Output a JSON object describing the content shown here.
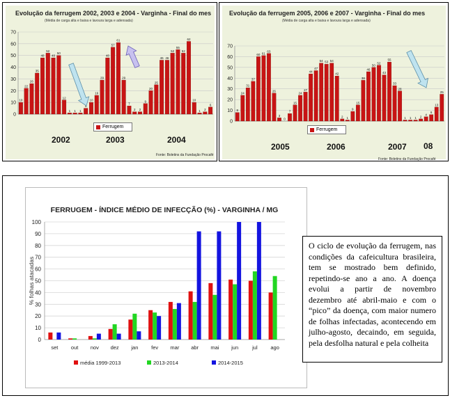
{
  "chart_data": [
    {
      "type": "bar",
      "title": "Evolução da ferrugem 2002, 2003 e 2004   -  Varginha   -   Final do mes",
      "subtitle": "(Média de carga alta e baixa e lavoura larga e adensada)",
      "legend": [
        "Ferrugem"
      ],
      "years": [
        "2002",
        "2003",
        "2004"
      ],
      "source": "Fonte: Boletins da Fundação Procafé",
      "ylim": [
        0,
        70
      ],
      "yticks": [
        0,
        10,
        20,
        30,
        40,
        50,
        60,
        70
      ],
      "values": [
        10,
        22,
        26,
        35,
        48,
        52,
        48,
        50,
        12,
        1,
        1,
        1,
        5,
        10,
        16,
        29,
        48,
        57,
        61,
        29,
        7,
        2,
        2,
        9,
        20,
        25,
        46,
        46,
        52,
        55,
        52,
        62,
        10,
        1,
        2,
        6
      ],
      "series_color": "#c81414",
      "annotations": [
        "down-arrow-blue",
        "up-arrow-purple"
      ]
    },
    {
      "type": "bar",
      "title": "Evolução da ferrugem 2005, 2006 e 2007   -  Varginha   -   Final do mes",
      "subtitle": "(Média de carga alta e baixa e lavoura larga e adensada)",
      "legend": [
        "Ferrugem"
      ],
      "years": [
        "2005",
        "2006",
        "2007",
        "08"
      ],
      "source": "Fonte: Boletins da Fundação Procafé",
      "ylim": [
        0,
        70
      ],
      "yticks": [
        0,
        10,
        20,
        30,
        40,
        50,
        60,
        70
      ],
      "values": [
        8,
        24,
        31,
        37,
        60,
        61,
        63,
        26,
        3,
        0,
        7,
        15,
        24,
        27,
        44,
        47,
        54,
        53,
        54,
        42,
        2,
        1,
        9,
        15,
        38,
        46,
        50,
        52,
        43,
        55,
        33,
        28,
        1,
        1,
        1,
        2,
        4,
        6,
        13,
        25
      ],
      "series_color": "#c81414",
      "annotations": [
        "down-arrow-blue",
        "down-arrow-blue"
      ]
    },
    {
      "type": "bar",
      "title": "FERRUGEM - ÍNDICE MÉDIO DE INFECÇÃO (%) - VARGINHA / MG",
      "ylabel": "% folhas atacadas",
      "categories": [
        "set",
        "out",
        "nov",
        "dez",
        "jan",
        "fev",
        "mar",
        "abr",
        "mai",
        "jun",
        "jul",
        "ago"
      ],
      "ylim": [
        0,
        100
      ],
      "yticks": [
        0,
        10,
        20,
        30,
        40,
        50,
        60,
        70,
        80,
        90,
        100
      ],
      "series": [
        {
          "name": "média 1999-2013",
          "color": "#e01010",
          "values": [
            6,
            1,
            3,
            9,
            17,
            25,
            32,
            41,
            48,
            51,
            50,
            40
          ]
        },
        {
          "name": "2013-2014",
          "color": "#22d622",
          "values": [
            0,
            1,
            1,
            13,
            22,
            23,
            26,
            32,
            38,
            47,
            58,
            54
          ]
        },
        {
          "name": "2014-2015",
          "color": "#1414e0",
          "values": [
            6,
            0,
            5,
            5,
            7,
            20,
            31,
            92,
            92,
            100,
            100,
            null
          ]
        }
      ]
    }
  ],
  "description_text": "O ciclo de evolução da ferrugem, nas condições da cafeicultura brasileira, tem se mostrado bem definido, repetindo-se ano a ano. A doença evolui a partir de novembro dezembro até abril-maio e com o “pico” da doença, com maior numero de folhas infectadas, acontecendo em julho-agosto, decaindo, em seguida, pela desfolha natural e pela colheita"
}
